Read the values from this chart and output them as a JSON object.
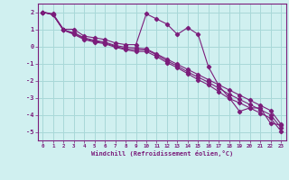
{
  "xlabel": "Windchill (Refroidissement éolien,°C)",
  "x_values": [
    0,
    1,
    2,
    3,
    4,
    5,
    6,
    7,
    8,
    9,
    10,
    11,
    12,
    13,
    14,
    15,
    16,
    17,
    18,
    19,
    20,
    21,
    22,
    23
  ],
  "line1": [
    2.0,
    1.9,
    1.0,
    1.0,
    0.6,
    0.5,
    0.4,
    0.2,
    0.1,
    0.1,
    1.9,
    1.6,
    1.3,
    0.7,
    1.1,
    0.7,
    -1.2,
    -2.3,
    -3.0,
    -3.8,
    -3.6,
    -3.6,
    -4.5,
    -4.6
  ],
  "line2": [
    2.0,
    1.85,
    0.95,
    0.8,
    0.5,
    0.35,
    0.25,
    0.05,
    -0.05,
    -0.1,
    -0.15,
    -0.45,
    -0.75,
    -1.05,
    -1.35,
    -1.65,
    -1.95,
    -2.25,
    -2.55,
    -2.85,
    -3.15,
    -3.45,
    -3.75,
    -4.55
  ],
  "line3": [
    2.0,
    1.85,
    0.95,
    0.75,
    0.45,
    0.3,
    0.2,
    0.0,
    -0.15,
    -0.2,
    -0.2,
    -0.5,
    -0.85,
    -1.15,
    -1.5,
    -1.8,
    -2.1,
    -2.45,
    -2.8,
    -3.1,
    -3.4,
    -3.7,
    -4.0,
    -4.75
  ],
  "line4": [
    2.0,
    1.85,
    0.95,
    0.7,
    0.4,
    0.25,
    0.15,
    -0.05,
    -0.2,
    -0.3,
    -0.3,
    -0.6,
    -0.95,
    -1.25,
    -1.6,
    -1.95,
    -2.25,
    -2.65,
    -3.05,
    -3.3,
    -3.6,
    -3.9,
    -4.2,
    -4.95
  ],
  "line_color": "#7b1d7b",
  "bg_color": "#d0f0f0",
  "grid_color": "#a8d8d8",
  "ylim": [
    -5.5,
    2.5
  ],
  "yticks": [
    2,
    1,
    0,
    -1,
    -2,
    -3,
    -4,
    -5
  ],
  "xlim": [
    -0.5,
    23.5
  ]
}
